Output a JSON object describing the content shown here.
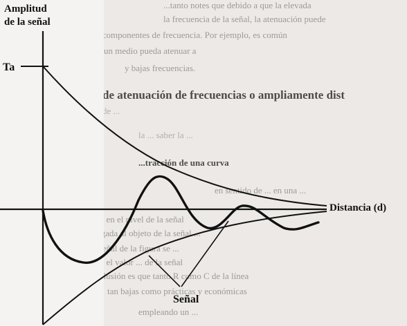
{
  "diagram": {
    "y_axis_label_line1": "Amplitud",
    "y_axis_label_line2": "de la señal",
    "ta_label": "Ta",
    "x_axis_label": "Distancia (d)",
    "signal_label": "Señal"
  },
  "background_text": [
    "...tanto notes que debido a que la elevada",
    "la frecuencia de la señal, la atenuación puede",
    "las componentes de frecuencia. Por ejemplo, es común",
    "un medio pueda atenuar a",
    "y bajas frecuencias.",
    "de atenuación de frecuencias o ampliamente dist",
    "de ...",
    "la ... saber la ...",
    "...tracción de una curva",
    "en sentido de ... en una ...",
    "el objeto de atenuación en el nivel de la señal",
    "la llegada al objeto de la señal ...",
    "la señal de la figura se ...",
    "de ... el valor ... de la señal",
    "conclusión es que tanto R como C de la línea",
    "tan bajas como prácticas y económicas",
    "empleando un ..."
  ]
}
